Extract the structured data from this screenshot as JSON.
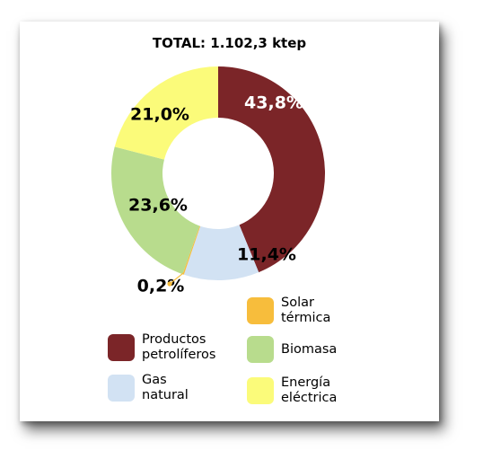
{
  "chart_data": {
    "type": "pie",
    "title": "TOTAL: 1.102,3 ktep",
    "donut": true,
    "legend_position": "bottom",
    "slices": [
      {
        "name": "Productos petrolíferos",
        "value": 43.8,
        "label": "43,8%",
        "color": "#7b2528",
        "label_color": "#ffffff"
      },
      {
        "name": "Gas natural",
        "value": 11.4,
        "label": "11,4%",
        "color": "#d2e2f3",
        "label_color": "#000000"
      },
      {
        "name": "Solar térmica",
        "value": 0.2,
        "label": "0,2%",
        "color": "#f7bd3c",
        "label_color": "#000000"
      },
      {
        "name": "Biomasa",
        "value": 23.6,
        "label": "23,6%",
        "color": "#b8dc8d",
        "label_color": "#000000"
      },
      {
        "name": "Energía eléctrica",
        "value": 21.0,
        "label": "21,0%",
        "color": "#fbfb7a",
        "label_color": "#000000"
      }
    ]
  },
  "legend": [
    {
      "label": "Solar\ntérmica",
      "color": "#f7bd3c"
    },
    {
      "label": "Productos\npetrolíferos",
      "color": "#7b2528"
    },
    {
      "label": "Biomasa",
      "color": "#b8dc8d"
    },
    {
      "label": "Gas\nnatural",
      "color": "#d2e2f3"
    },
    {
      "label": "Energía\neléctrica",
      "color": "#fbfb7a"
    }
  ]
}
